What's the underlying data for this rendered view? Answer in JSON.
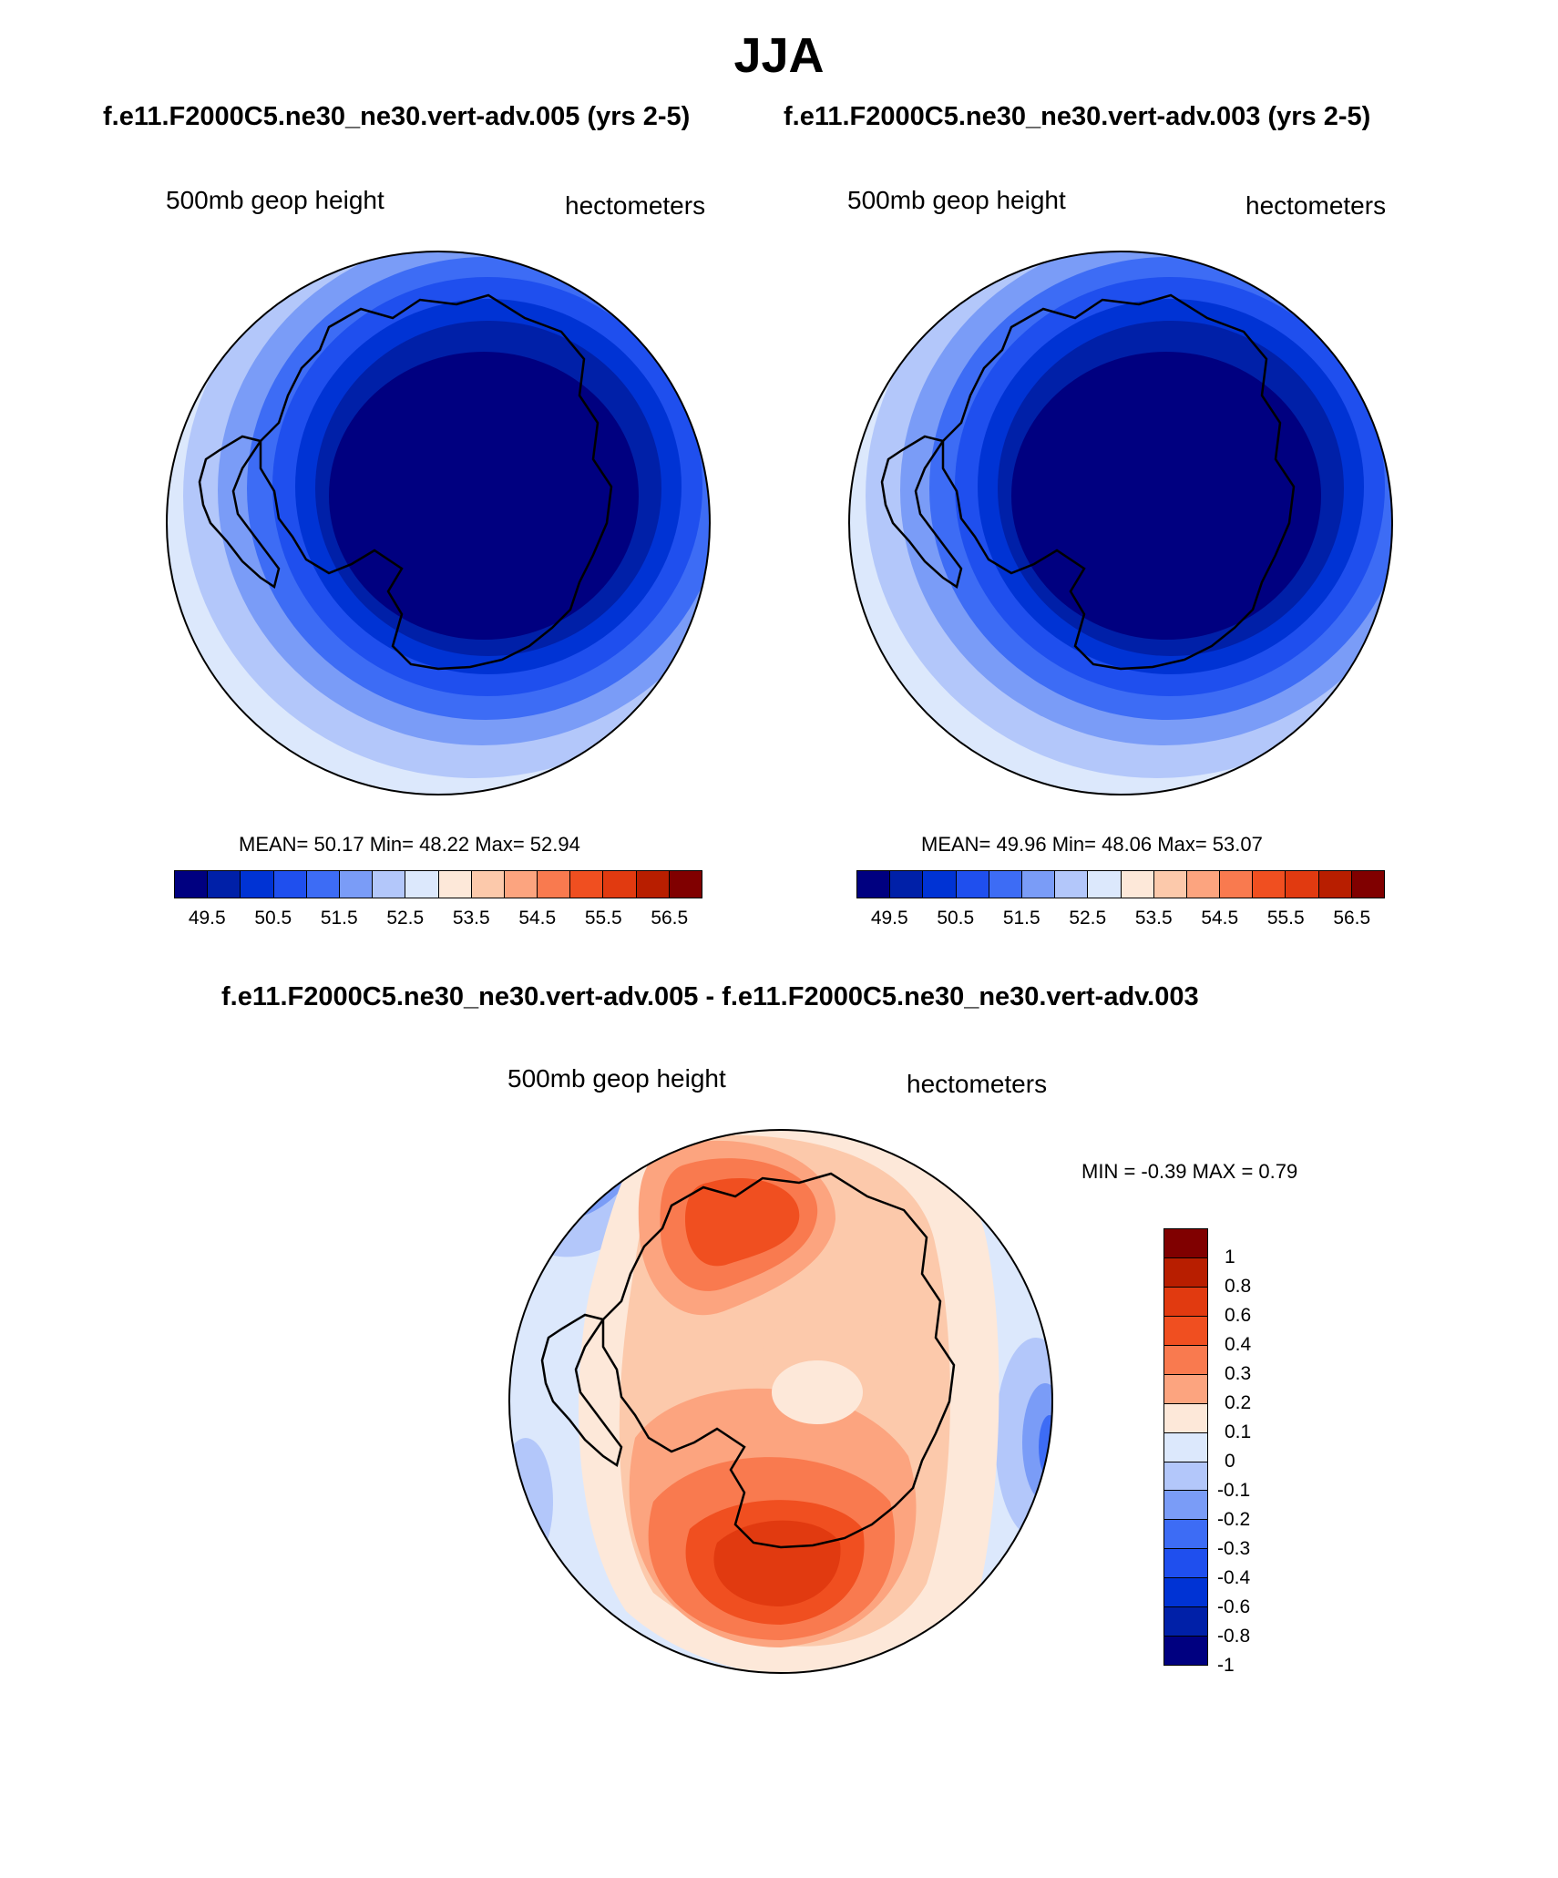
{
  "title": "JJA",
  "panels": [
    {
      "id": "left",
      "case_title": "f.e11.F2000C5.ne30_ne30.vert-adv.005 (yrs 2-5)",
      "variable_label": "500mb geop height",
      "units_label": "hectometers",
      "stats": "MEAN=  50.17  Min=  48.22  Max=  52.94"
    },
    {
      "id": "right",
      "case_title": "f.e11.F2000C5.ne30_ne30.vert-adv.003 (yrs 2-5)",
      "variable_label": "500mb geop height",
      "units_label": "hectometers",
      "stats": "MEAN=  49.96  Min=  48.06  Max=  53.07"
    }
  ],
  "abs_colorbar": {
    "colors": [
      "#000080",
      "#0020a8",
      "#0033d4",
      "#1f4fee",
      "#3d6cf5",
      "#7a9cf7",
      "#b3c7fa",
      "#dce8fc",
      "#fde8d9",
      "#fcc9ab",
      "#fca47f",
      "#f97a4f",
      "#f04f20",
      "#e13a10",
      "#b81e00",
      "#800000"
    ],
    "ticks": [
      "49.5",
      "50.5",
      "51.5",
      "52.5",
      "53.5",
      "54.5",
      "55.5",
      "56.5"
    ]
  },
  "diff_panel": {
    "title": "f.e11.F2000C5.ne30_ne30.vert-adv.005 - f.e11.F2000C5.ne30_ne30.vert-adv.003",
    "variable_label": "500mb geop height",
    "units_label": "hectometers",
    "stats": "MIN =  -0.39 MAX =   0.79"
  },
  "diff_colorbar": {
    "colors": [
      "#800000",
      "#b81e00",
      "#e13a10",
      "#f04f20",
      "#f97a4f",
      "#fca47f",
      "#fde8d9",
      "#dce8fc",
      "#b3c7fa",
      "#7a9cf7",
      "#3d6cf5",
      "#1f4fee",
      "#0033d4",
      "#0020a8",
      "#000080"
    ],
    "ticks": [
      "1",
      "0.8",
      "0.6",
      "0.4",
      "0.3",
      "0.2",
      "0.1",
      "0",
      "-0.1",
      "-0.2",
      "-0.3",
      "-0.4",
      "-0.6",
      "-0.8",
      "-1"
    ]
  },
  "map_colors": {
    "abs_rings": [
      "#dce8fc",
      "#b3c7fa",
      "#7a9cf7",
      "#3d6cf5",
      "#1f4fee",
      "#0033d4",
      "#0020a8",
      "#000080"
    ],
    "diff_bg": "#dce8fc",
    "diff_light_blue": "#b3c7fa",
    "diff_mid_blue": "#7a9cf7",
    "diff_blue": "#3d6cf5",
    "diff_pale_orange": "#fde8d9",
    "diff_light_orange": "#fcc9ab",
    "diff_orange": "#fca47f",
    "diff_dark_orange": "#f97a4f",
    "diff_red_orange": "#f04f20",
    "diff_deep_red": "#e13a10",
    "coast": "#000000"
  }
}
